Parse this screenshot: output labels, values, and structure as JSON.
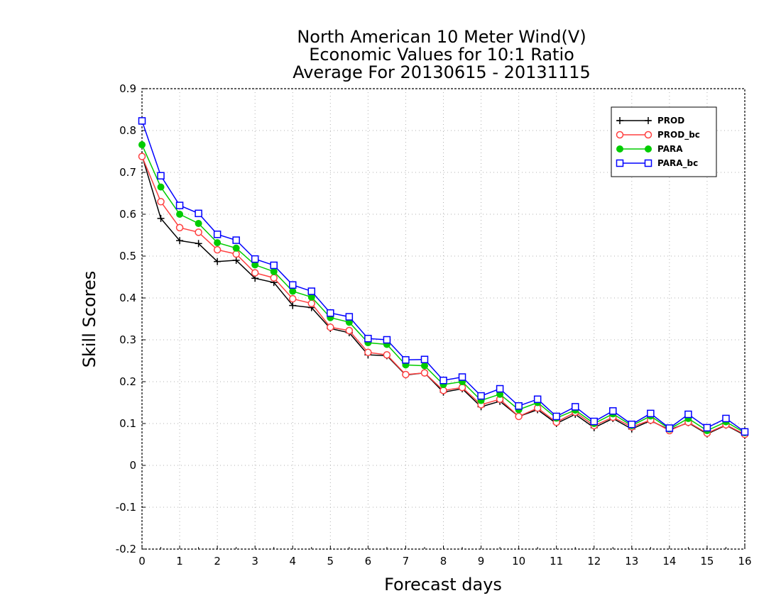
{
  "chart_data": {
    "type": "line",
    "title_lines": [
      "North American 10 Meter Wind(V)",
      "Economic Values for 10:1 Ratio",
      "Average For 20130615 - 20131115"
    ],
    "xlabel": "Forecast days",
    "ylabel": "Skill Scores",
    "xlim": [
      0,
      16
    ],
    "ylim": [
      -0.2,
      0.9
    ],
    "x_ticks": [
      "0",
      "1",
      "2",
      "3",
      "4",
      "5",
      "6",
      "7",
      "8",
      "9",
      "10",
      "11",
      "12",
      "13",
      "14",
      "15",
      "16"
    ],
    "y_ticks": [
      "-0.2",
      "-0.1",
      "0",
      "0.1",
      "0.2",
      "0.3",
      "0.4",
      "0.5",
      "0.6",
      "0.7",
      "0.8",
      "0.9"
    ],
    "grid": true,
    "legend_position": "top-right",
    "x": [
      0,
      0.5,
      1,
      1.5,
      2,
      2.5,
      3,
      3.5,
      4,
      4.5,
      5,
      5.5,
      6,
      6.5,
      7,
      7.5,
      8,
      8.5,
      9,
      9.5,
      10,
      10.5,
      11,
      11.5,
      12,
      12.5,
      13,
      13.5,
      14,
      14.5,
      15,
      15.5,
      16
    ],
    "series": [
      {
        "name": "PROD",
        "color": "#000000",
        "marker": "plus",
        "values": [
          0.74,
          0.59,
          0.537,
          0.53,
          0.487,
          0.49,
          0.447,
          0.437,
          0.382,
          0.377,
          0.327,
          0.317,
          0.264,
          0.262,
          0.216,
          0.221,
          0.175,
          0.183,
          0.14,
          0.153,
          0.117,
          0.133,
          0.1,
          0.122,
          0.09,
          0.112,
          0.087,
          0.107,
          0.085,
          0.102,
          0.075,
          0.096,
          0.072
        ]
      },
      {
        "name": "PROD_bc",
        "color": "#ff4040",
        "marker": "circle-open",
        "values": [
          0.738,
          0.63,
          0.568,
          0.557,
          0.515,
          0.505,
          0.46,
          0.448,
          0.398,
          0.387,
          0.33,
          0.322,
          0.27,
          0.264,
          0.217,
          0.221,
          0.179,
          0.186,
          0.145,
          0.158,
          0.117,
          0.137,
          0.103,
          0.127,
          0.095,
          0.115,
          0.092,
          0.108,
          0.083,
          0.103,
          0.077,
          0.097,
          0.074
        ]
      },
      {
        "name": "PARA",
        "color": "#00cc00",
        "marker": "circle-filled",
        "values": [
          0.766,
          0.665,
          0.6,
          0.578,
          0.532,
          0.519,
          0.479,
          0.463,
          0.416,
          0.402,
          0.353,
          0.342,
          0.293,
          0.289,
          0.24,
          0.238,
          0.193,
          0.2,
          0.155,
          0.17,
          0.133,
          0.15,
          0.113,
          0.132,
          0.1,
          0.123,
          0.095,
          0.118,
          0.087,
          0.112,
          0.083,
          0.104,
          0.078
        ]
      },
      {
        "name": "PARA_bc",
        "color": "#0000ff",
        "marker": "square-open",
        "values": [
          0.823,
          0.692,
          0.621,
          0.602,
          0.552,
          0.538,
          0.493,
          0.478,
          0.431,
          0.416,
          0.364,
          0.355,
          0.303,
          0.3,
          0.252,
          0.253,
          0.203,
          0.211,
          0.166,
          0.183,
          0.142,
          0.158,
          0.117,
          0.14,
          0.105,
          0.13,
          0.098,
          0.124,
          0.089,
          0.122,
          0.09,
          0.112,
          0.08
        ]
      }
    ]
  }
}
